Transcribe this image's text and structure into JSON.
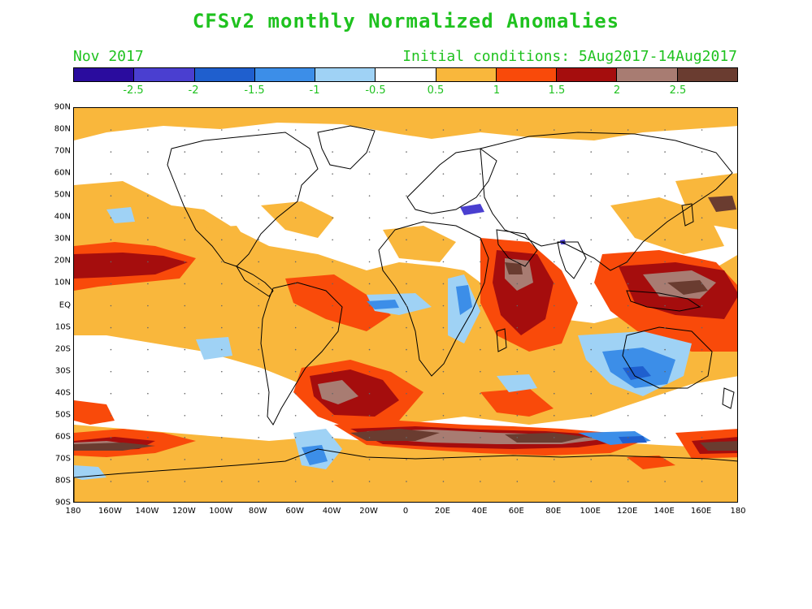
{
  "header": {
    "title": "CFSv2 monthly Normalized Anomalies",
    "month": "Nov 2017",
    "initial_conditions": "Initial conditions: 5Aug2017-14Aug2017"
  },
  "colorbar": {
    "colors": [
      "#2a0c9e",
      "#4a3fd0",
      "#1f5fce",
      "#3c8ee8",
      "#9fd2f5",
      "#ffffff",
      "#f9b73c",
      "#f94a0a",
      "#a50d0d",
      "#a87c72",
      "#6a3c30"
    ],
    "labels": [
      "-2.5",
      "-2",
      "-1.5",
      "-1",
      "-0.5",
      "0.5",
      "1",
      "1.5",
      "2",
      "2.5"
    ]
  },
  "map": {
    "lat_labels": [
      "90N",
      "80N",
      "70N",
      "60N",
      "50N",
      "40N",
      "30N",
      "20N",
      "10N",
      "EQ",
      "10S",
      "20S",
      "30S",
      "40S",
      "50S",
      "60S",
      "70S",
      "80S",
      "90S"
    ],
    "lon_labels": [
      "180",
      "160W",
      "140W",
      "120W",
      "100W",
      "80W",
      "60W",
      "40W",
      "20W",
      "0",
      "20E",
      "40E",
      "60E",
      "80E",
      "100E",
      "120E",
      "140E",
      "160E",
      "180"
    ],
    "colors": {
      "orange": "#f9b73c",
      "red": "#f94a0a",
      "darkred": "#a50d0d",
      "pink": "#a87c72",
      "brown": "#6a3c30",
      "lightblue": "#9fd2f5",
      "blue": "#3c8ee8",
      "deepblue": "#1f5fce",
      "indigo": "#4a3fd0",
      "coast": "#000000"
    }
  }
}
